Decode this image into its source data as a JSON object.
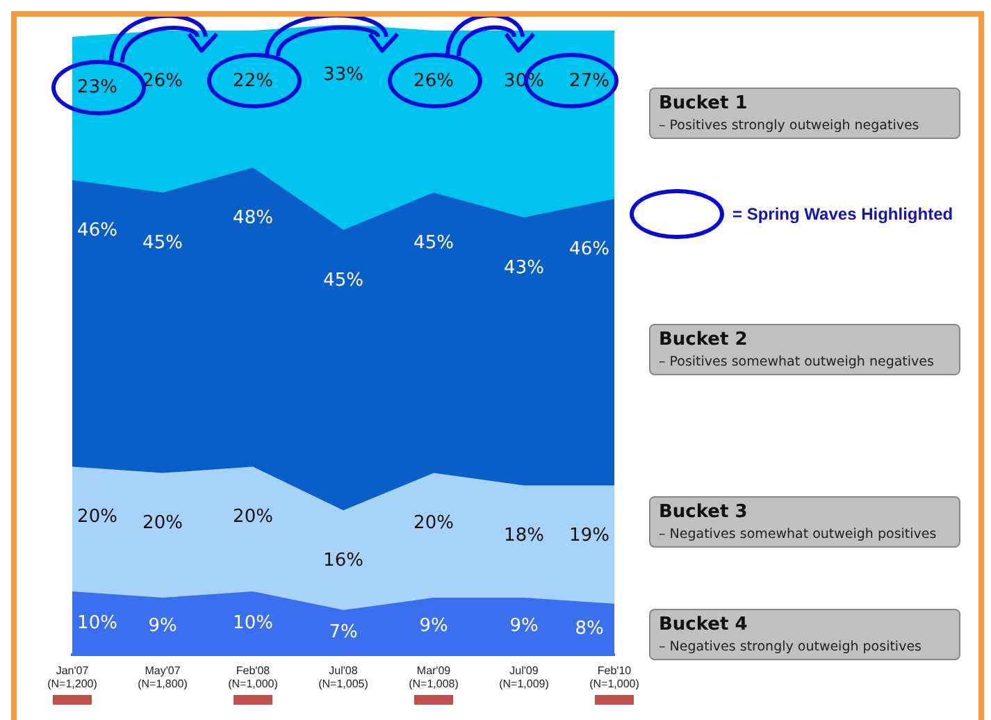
{
  "chart_data": {
    "type": "area",
    "stacked": true,
    "legend": "right",
    "categories": [
      "Jan'07\n(N=1,200)",
      "May'07\n(N=1,800)",
      "Feb'08\n(N=1,000)",
      "Jul'08\n(N=1,005)",
      "Mar'09\n(N=1,008)",
      "Jul'09\n(N=1,009)",
      "Feb'10\n(N=1,000)"
    ],
    "series": [
      {
        "name": "Bucket 4",
        "color": "#3b6ff0",
        "values": [
          10,
          9,
          10,
          7,
          9,
          9,
          8
        ],
        "value_labels": [
          "10%",
          "9%",
          "10%",
          "7%",
          "9%",
          "9%",
          "8%"
        ]
      },
      {
        "name": "Bucket 3",
        "color": "#a8d3f8",
        "values": [
          20,
          20,
          20,
          16,
          20,
          18,
          19
        ],
        "value_labels": [
          "20%",
          "20%",
          "20%",
          "16%",
          "20%",
          "18%",
          "19%"
        ]
      },
      {
        "name": "Bucket 2",
        "color": "#0a5ec8",
        "values": [
          46,
          45,
          48,
          45,
          45,
          43,
          46
        ],
        "value_labels": [
          "46%",
          "45%",
          "48%",
          "45%",
          "45%",
          "43%",
          "46%"
        ]
      },
      {
        "name": "Bucket 1",
        "color": "#00c4f0",
        "values": [
          23,
          26,
          22,
          33,
          26,
          30,
          27
        ],
        "value_labels": [
          "23%",
          "26%",
          "22%",
          "33%",
          "26%",
          "30%",
          "27%"
        ]
      }
    ],
    "annotations": [
      "– Negatives strongly outweigh positives",
      "– Negatives somewhat outweigh positives",
      "– Positives somewhat outweigh negatives",
      "– Positives strongly outweigh negatives",
      "= Spring Waves Highlighted"
    ]
  }
}
